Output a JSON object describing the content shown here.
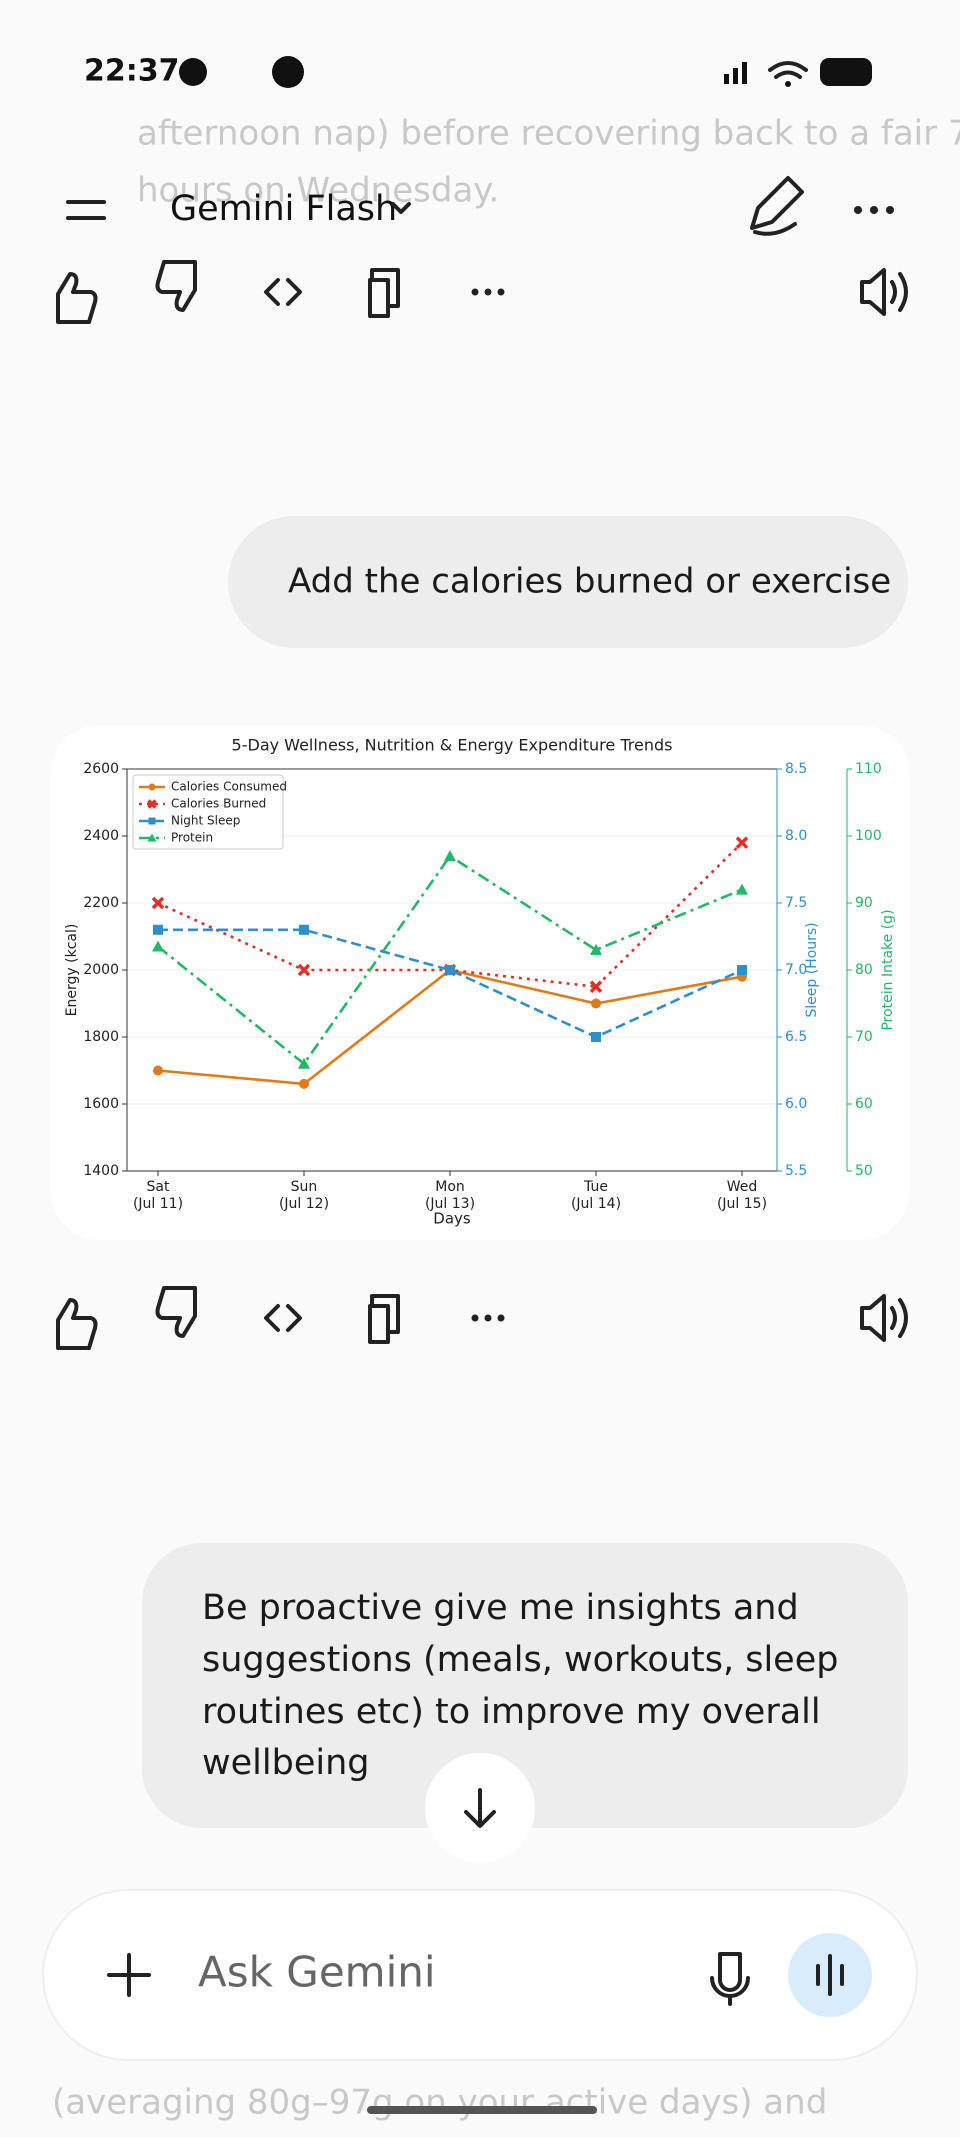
{
  "status_bar": {
    "time": "22:37"
  },
  "header": {
    "title": "Gemini Flash"
  },
  "background_text": {
    "top": [
      "afternoon nap) before recovering back to a fair 7",
      "hours on Wednesday."
    ],
    "bottom": [
      "(averaging 80g–97g on your active days) and"
    ]
  },
  "messages": [
    {
      "lines": [
        "Add the calories burned or exercise"
      ]
    },
    {
      "lines": [
        "Be proactive give me insights and",
        "suggestions (meals, workouts, sleep",
        "routines etc) to improve my overall",
        "wellbeing"
      ]
    }
  ],
  "chart_data": {
    "type": "line",
    "title": "5-Day Wellness, Nutrition & Energy Expenditure Trends",
    "xlabel": "Days",
    "ylabel": "Energy (kcal)",
    "y2label": "Sleep (Hours)",
    "y3label": "Protein Intake (g)",
    "categories": [
      "Sat\n(Jul 11)",
      "Sun\n(Jul 12)",
      "Mon\n(Jul 13)",
      "Tue\n(Jul 14)",
      "Wed\n(Jul 15)"
    ],
    "ylim": [
      1400,
      2600
    ],
    "yticks": [
      1400,
      1600,
      1800,
      2000,
      2200,
      2400,
      2600
    ],
    "y2lim": [
      5.5,
      8.5
    ],
    "y2ticks": [
      5.5,
      {
        "value": 6,
        "label": "6.0"
      },
      6.5,
      {
        "value": 7,
        "label": "7.0"
      },
      7.5,
      {
        "value": 8,
        "label": "8.0"
      },
      8.5
    ],
    "y2color": "#2e8fce",
    "y3lim": [
      50,
      110
    ],
    "y3ticks": [
      50,
      60,
      70,
      80,
      90,
      100,
      110
    ],
    "y3color": "#22b866",
    "grid": true,
    "legend": "upper left",
    "series": [
      {
        "name": "Calories Consumed",
        "color": "#e07b1a",
        "marker": "circle",
        "linestyle": "solid",
        "axis": "y",
        "values": [
          1700,
          1660,
          2000,
          1900,
          1980
        ]
      },
      {
        "name": "Calories Burned",
        "color": "#e0302a",
        "marker": "x",
        "linestyle": "dotted",
        "axis": "y",
        "values": [
          2200,
          2000,
          2000,
          1950,
          2380
        ]
      },
      {
        "name": "Night Sleep",
        "color": "#2e8fce",
        "marker": "square",
        "linestyle": "dashed",
        "axis": "y2",
        "values": [
          7.3,
          7.3,
          7.0,
          6.5,
          7.0
        ]
      },
      {
        "name": "Protein",
        "color": "#22b866",
        "marker": "triangle",
        "linestyle": "dashdot",
        "axis": "y3",
        "values": [
          83.5,
          66,
          97,
          83,
          92
        ]
      }
    ]
  },
  "input": {
    "placeholder": "Ask Gemini"
  }
}
